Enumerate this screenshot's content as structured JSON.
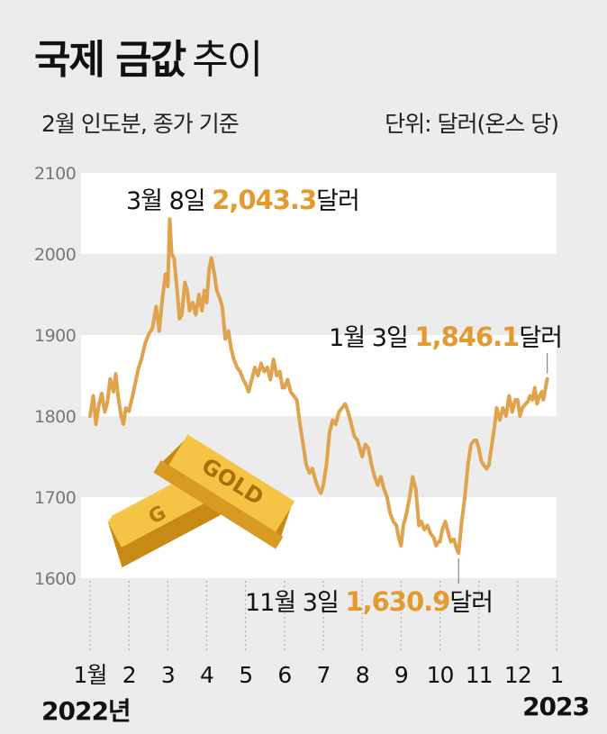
{
  "header": {
    "title_bold": "국제 금값",
    "title_light": "추이",
    "subtitle_left": "2월 인도분, 종가 기준",
    "subtitle_right": "단위: 달러(온스 당)"
  },
  "footer": {
    "year_start": "2022년",
    "year_end": "2023"
  },
  "colors": {
    "line": "#e0a24c",
    "highlight": "#e59a2f",
    "band": "#ffffff",
    "background": "#ececec",
    "tick": "#777777"
  },
  "chart_data": {
    "type": "line",
    "title": "국제 금값 추이",
    "ylim": [
      1600,
      2100
    ],
    "yticks": [
      "2100",
      "2000",
      "1900",
      "1800",
      "1700",
      "1600"
    ],
    "xticks": [
      "1월",
      "2",
      "3",
      "4",
      "5",
      "6",
      "7",
      "8",
      "9",
      "10",
      "11",
      "12",
      "1"
    ],
    "series": [
      {
        "values": [
          [
            0.0,
            1800
          ],
          [
            0.08,
            1825
          ],
          [
            0.15,
            1790
          ],
          [
            0.22,
            1812
          ],
          [
            0.3,
            1828
          ],
          [
            0.38,
            1805
          ],
          [
            0.45,
            1818
          ],
          [
            0.52,
            1846
          ],
          [
            0.6,
            1830
          ],
          [
            0.66,
            1852
          ],
          [
            0.72,
            1825
          ],
          [
            0.8,
            1800
          ],
          [
            0.86,
            1790
          ],
          [
            0.92,
            1810
          ],
          [
            1.0,
            1806
          ],
          [
            1.08,
            1822
          ],
          [
            1.16,
            1840
          ],
          [
            1.24,
            1858
          ],
          [
            1.32,
            1870
          ],
          [
            1.42,
            1890
          ],
          [
            1.52,
            1902
          ],
          [
            1.6,
            1908
          ],
          [
            1.7,
            1935
          ],
          [
            1.78,
            1905
          ],
          [
            1.86,
            1945
          ],
          [
            1.94,
            1975
          ],
          [
            2.0,
            1960
          ],
          [
            2.05,
            2043
          ],
          [
            2.1,
            2000
          ],
          [
            2.16,
            1995
          ],
          [
            2.24,
            1955
          ],
          [
            2.3,
            1920
          ],
          [
            2.36,
            1925
          ],
          [
            2.44,
            1965
          ],
          [
            2.5,
            1955
          ],
          [
            2.56,
            1930
          ],
          [
            2.64,
            1940
          ],
          [
            2.72,
            1925
          ],
          [
            2.8,
            1950
          ],
          [
            2.88,
            1930
          ],
          [
            2.94,
            1955
          ],
          [
            3.0,
            1940
          ],
          [
            3.06,
            1980
          ],
          [
            3.12,
            1995
          ],
          [
            3.2,
            1975
          ],
          [
            3.26,
            1955
          ],
          [
            3.34,
            1945
          ],
          [
            3.4,
            1935
          ],
          [
            3.48,
            1895
          ],
          [
            3.56,
            1905
          ],
          [
            3.62,
            1885
          ],
          [
            3.7,
            1870
          ],
          [
            3.78,
            1860
          ],
          [
            3.86,
            1855
          ],
          [
            3.94,
            1845
          ],
          [
            4.0,
            1840
          ],
          [
            4.08,
            1830
          ],
          [
            4.16,
            1845
          ],
          [
            4.24,
            1860
          ],
          [
            4.32,
            1850
          ],
          [
            4.4,
            1865
          ],
          [
            4.48,
            1855
          ],
          [
            4.56,
            1860
          ],
          [
            4.64,
            1845
          ],
          [
            4.72,
            1870
          ],
          [
            4.8,
            1850
          ],
          [
            4.88,
            1855
          ],
          [
            4.95,
            1835
          ],
          [
            5.0,
            1835
          ],
          [
            5.08,
            1845
          ],
          [
            5.16,
            1830
          ],
          [
            5.24,
            1825
          ],
          [
            5.32,
            1820
          ],
          [
            5.4,
            1790
          ],
          [
            5.48,
            1765
          ],
          [
            5.56,
            1740
          ],
          [
            5.64,
            1730
          ],
          [
            5.72,
            1735
          ],
          [
            5.8,
            1720
          ],
          [
            5.88,
            1710
          ],
          [
            5.94,
            1705
          ],
          [
            6.0,
            1715
          ],
          [
            6.08,
            1740
          ],
          [
            6.16,
            1780
          ],
          [
            6.24,
            1795
          ],
          [
            6.32,
            1790
          ],
          [
            6.4,
            1805
          ],
          [
            6.48,
            1810
          ],
          [
            6.56,
            1815
          ],
          [
            6.64,
            1805
          ],
          [
            6.72,
            1790
          ],
          [
            6.8,
            1775
          ],
          [
            6.88,
            1770
          ],
          [
            6.94,
            1760
          ],
          [
            7.0,
            1750
          ],
          [
            7.08,
            1765
          ],
          [
            7.16,
            1760
          ],
          [
            7.24,
            1740
          ],
          [
            7.32,
            1725
          ],
          [
            7.4,
            1715
          ],
          [
            7.48,
            1725
          ],
          [
            7.56,
            1710
          ],
          [
            7.64,
            1700
          ],
          [
            7.72,
            1680
          ],
          [
            7.8,
            1670
          ],
          [
            7.88,
            1665
          ],
          [
            7.94,
            1650
          ],
          [
            8.0,
            1640
          ],
          [
            8.06,
            1665
          ],
          [
            8.14,
            1680
          ],
          [
            8.22,
            1700
          ],
          [
            8.3,
            1725
          ],
          [
            8.38,
            1710
          ],
          [
            8.46,
            1665
          ],
          [
            8.52,
            1670
          ],
          [
            8.6,
            1660
          ],
          [
            8.68,
            1665
          ],
          [
            8.76,
            1655
          ],
          [
            8.84,
            1650
          ],
          [
            8.9,
            1640
          ],
          [
            8.96,
            1645
          ],
          [
            9.0,
            1645
          ],
          [
            9.06,
            1660
          ],
          [
            9.14,
            1670
          ],
          [
            9.22,
            1655
          ],
          [
            9.28,
            1645
          ],
          [
            9.36,
            1648
          ],
          [
            9.42,
            1638
          ],
          [
            9.48,
            1631
          ],
          [
            9.56,
            1670
          ],
          [
            9.64,
            1700
          ],
          [
            9.72,
            1740
          ],
          [
            9.8,
            1765
          ],
          [
            9.88,
            1770
          ],
          [
            9.94,
            1770
          ],
          [
            10.0,
            1760
          ],
          [
            10.06,
            1745
          ],
          [
            10.12,
            1740
          ],
          [
            10.2,
            1735
          ],
          [
            10.26,
            1740
          ],
          [
            10.32,
            1760
          ],
          [
            10.4,
            1785
          ],
          [
            10.46,
            1810
          ],
          [
            10.54,
            1795
          ],
          [
            10.62,
            1810
          ],
          [
            10.7,
            1800
          ],
          [
            10.78,
            1825
          ],
          [
            10.86,
            1805
          ],
          [
            10.94,
            1820
          ],
          [
            11.0,
            1820
          ],
          [
            11.06,
            1800
          ],
          [
            11.12,
            1810
          ],
          [
            11.2,
            1815
          ],
          [
            11.26,
            1818
          ],
          [
            11.32,
            1825
          ],
          [
            11.38,
            1820
          ],
          [
            11.44,
            1835
          ],
          [
            11.5,
            1815
          ],
          [
            11.56,
            1825
          ],
          [
            11.62,
            1830
          ],
          [
            11.66,
            1820
          ],
          [
            11.72,
            1835
          ],
          [
            11.76,
            1846
          ]
        ]
      }
    ],
    "annotations": [
      {
        "date": "3월 8일",
        "value": "2,043.3",
        "unit": "달러"
      },
      {
        "date": "1월 3일",
        "value": "1,846.1",
        "unit": "달러"
      },
      {
        "date": "11월 3일",
        "value": "1,630.9",
        "unit": "달러"
      }
    ],
    "grid": "alternating white bands"
  }
}
